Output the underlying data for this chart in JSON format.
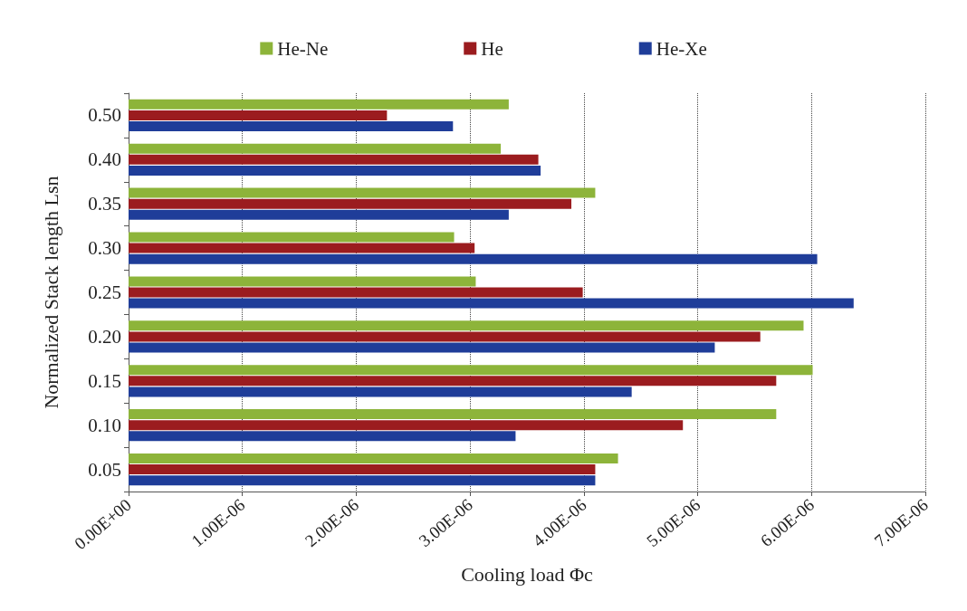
{
  "chart_data": {
    "type": "bar",
    "orientation": "horizontal",
    "xlabel": "Cooling load Φc",
    "ylabel": "Normalized Stack length Lsn",
    "categories": [
      "0.50",
      "0.40",
      "0.35",
      "0.30",
      "0.25",
      "0.20",
      "0.15",
      "0.10",
      "0.05"
    ],
    "series": [
      {
        "name": "He-Ne",
        "color": "#8db43a",
        "values": [
          3.34e-06,
          3.27e-06,
          4.1e-06,
          2.86e-06,
          3.05e-06,
          5.93e-06,
          6.01e-06,
          5.69e-06,
          4.3e-06
        ]
      },
      {
        "name": "He",
        "color": "#9b1c1f",
        "values": [
          2.27e-06,
          3.6e-06,
          3.89e-06,
          3.04e-06,
          3.99e-06,
          5.55e-06,
          5.69e-06,
          4.87e-06,
          4.1e-06
        ]
      },
      {
        "name": "He-Xe",
        "color": "#1f3d99",
        "values": [
          2.85e-06,
          3.62e-06,
          3.34e-06,
          6.05e-06,
          6.37e-06,
          5.15e-06,
          4.42e-06,
          3.4e-06,
          4.1e-06
        ]
      }
    ],
    "xlim": [
      0,
      7e-06
    ],
    "xticks": [
      {
        "value": 0,
        "label": "0.00E+00"
      },
      {
        "value": 1e-06,
        "label": "1.00E-06"
      },
      {
        "value": 2e-06,
        "label": "2.00E-06"
      },
      {
        "value": 3e-06,
        "label": "3.00E-06"
      },
      {
        "value": 4e-06,
        "label": "4.00E-06"
      },
      {
        "value": 5e-06,
        "label": "5.00E-06"
      },
      {
        "value": 6e-06,
        "label": "6.00E-06"
      },
      {
        "value": 7e-06,
        "label": "7.00E-06"
      }
    ],
    "grid": "x",
    "legend": "top"
  }
}
